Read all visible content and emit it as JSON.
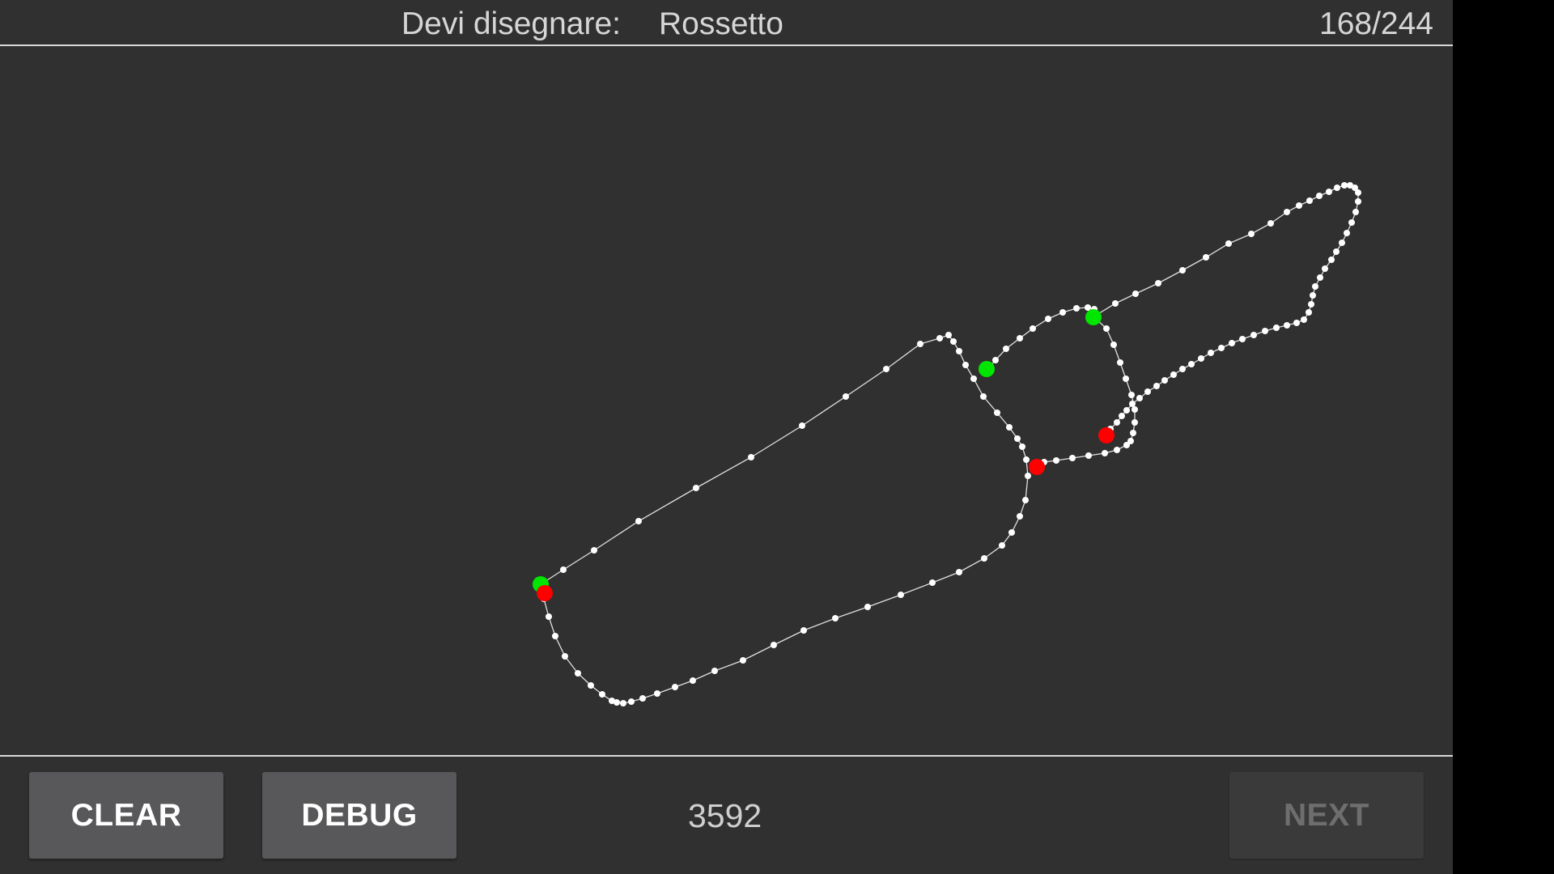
{
  "header": {
    "prompt_label": "Devi disegnare:",
    "prompt_word": "Rossetto",
    "progress": "168/244"
  },
  "footer": {
    "clear_label": "CLEAR",
    "debug_label": "DEBUG",
    "score": "3592",
    "next_label": "NEXT",
    "next_enabled": false
  },
  "colors": {
    "background": "#303030",
    "stroke": "#ffffff",
    "stroke_start": "#00e600",
    "stroke_end": "#ff0000",
    "button_bg": "#58585a",
    "button_disabled_bg": "#3a3a3a"
  }
}
